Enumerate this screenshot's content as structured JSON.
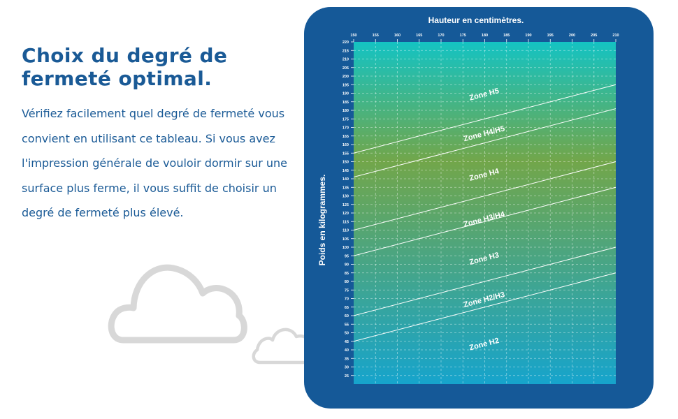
{
  "headline": "Choix du degré de fermeté optimal.",
  "body": "Vérifiez facilement quel degré de fermeté vous convient en utilisant ce tableau. Si vous avez l'impression générale de vouloir dormir sur une surface plus ferme, il vous suffit de choisir un degré de fermeté plus élevé.",
  "colors": {
    "text": "#1a5a96",
    "panel": "#155998",
    "gradient_top": "#14c3c3",
    "gradient_mid": "#72a64a",
    "gradient_bottom": "#16a4cc",
    "cloud": "#d8d8d8"
  },
  "chart_data": {
    "type": "line",
    "xlabel": "Hauteur en centimètres.",
    "ylabel": "Poids en kilogrammes.",
    "x_axis_position": "top",
    "xlim": [
      150,
      210
    ],
    "ylim": [
      20,
      220
    ],
    "x_ticks": [
      150,
      155,
      160,
      165,
      170,
      175,
      180,
      185,
      190,
      195,
      200,
      205,
      210
    ],
    "y_ticks": [
      25,
      30,
      35,
      40,
      45,
      50,
      55,
      60,
      65,
      70,
      75,
      80,
      85,
      90,
      95,
      100,
      105,
      110,
      115,
      120,
      125,
      130,
      135,
      140,
      145,
      150,
      155,
      160,
      165,
      170,
      175,
      180,
      185,
      190,
      195,
      200,
      205,
      210,
      215,
      220
    ],
    "grid": true,
    "series": [
      {
        "x": [
          150,
          210
        ],
        "y": [
          45,
          85
        ]
      },
      {
        "x": [
          150,
          210
        ],
        "y": [
          60,
          100
        ]
      },
      {
        "x": [
          150,
          210
        ],
        "y": [
          95,
          135
        ]
      },
      {
        "x": [
          150,
          210
        ],
        "y": [
          110,
          150
        ]
      },
      {
        "x": [
          150,
          210
        ],
        "y": [
          141,
          181
        ]
      },
      {
        "x": [
          150,
          210
        ],
        "y": [
          155,
          195
        ]
      }
    ],
    "annotations": [
      {
        "text": "Zone H5",
        "x": 180,
        "y": 188
      },
      {
        "text": "Zone H4/H5",
        "x": 180,
        "y": 165
      },
      {
        "text": "Zone H4",
        "x": 180,
        "y": 141
      },
      {
        "text": "Zone H3/H4",
        "x": 180,
        "y": 115
      },
      {
        "text": "Zone H3",
        "x": 180,
        "y": 92
      },
      {
        "text": "Zone H2/H3",
        "x": 180,
        "y": 68
      },
      {
        "text": "Zone H2",
        "x": 180,
        "y": 42
      }
    ]
  }
}
